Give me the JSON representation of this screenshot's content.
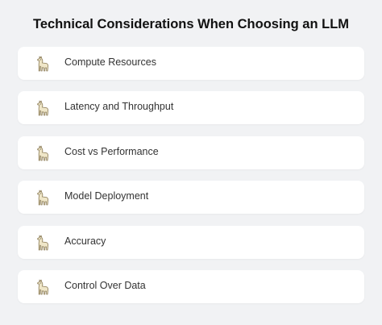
{
  "title": "Technical Considerations When Choosing an LLM",
  "items": [
    {
      "label": "Compute Resources",
      "icon": "llama-icon"
    },
    {
      "label": "Latency and Throughput",
      "icon": "llama-icon"
    },
    {
      "label": "Cost vs Performance",
      "icon": "llama-icon"
    },
    {
      "label": "Model Deployment",
      "icon": "llama-icon"
    },
    {
      "label": "Accuracy",
      "icon": "llama-icon"
    },
    {
      "label": "Control Over Data",
      "icon": "llama-icon"
    }
  ],
  "colors": {
    "background": "#f1f2f4",
    "card": "#ffffff",
    "llama_body": "#efe6c8",
    "llama_outline": "#8a7a55"
  }
}
